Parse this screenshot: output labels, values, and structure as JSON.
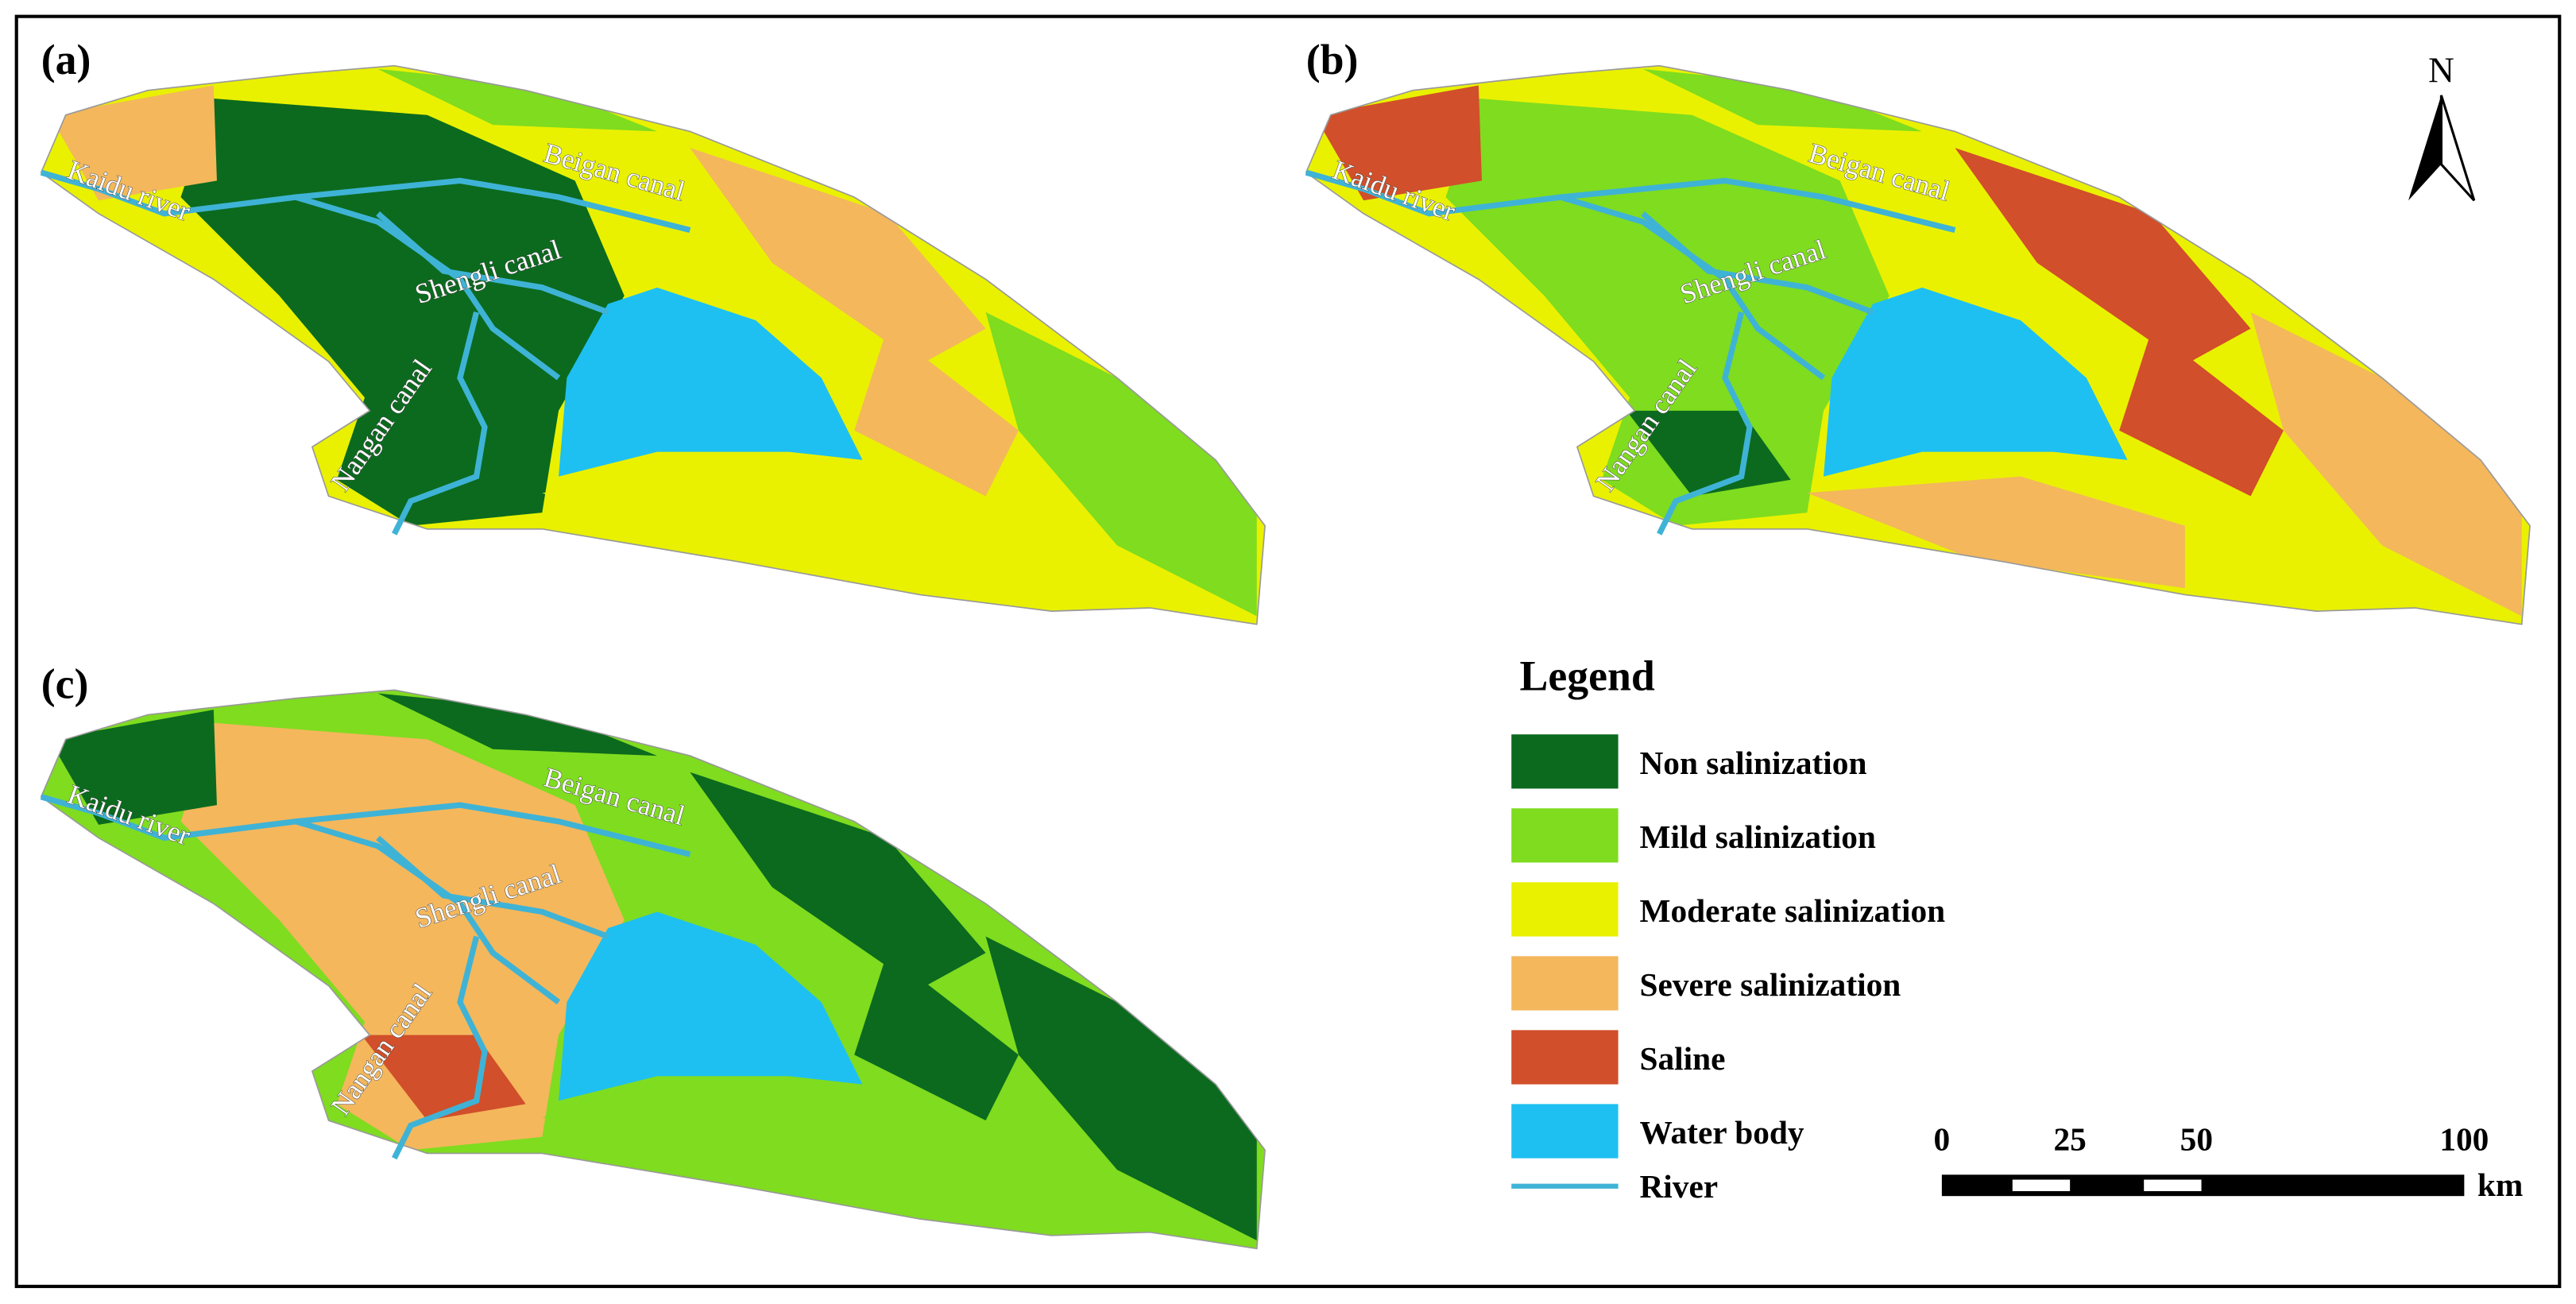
{
  "panels": [
    {
      "label": "(a)",
      "places": [
        "Kaidu river",
        "Beigan canal",
        "Shengli canal",
        "Nangan canal"
      ]
    },
    {
      "label": "(b)",
      "places": [
        "Kaidu river",
        "Beigan canal",
        "Shengli canal",
        "Nangan canal"
      ]
    },
    {
      "label": "(c)",
      "places": [
        "Kaidu river",
        "Beigan canal",
        "Shengli canal",
        "Nangan canal"
      ]
    }
  ],
  "north": "N",
  "legend": {
    "title": "Legend",
    "items": [
      {
        "label": "Non salinization",
        "color": "#0b6a1e"
      },
      {
        "label": "Mild  salinization",
        "color": "#7fdc1f"
      },
      {
        "label": "Moderate  salinization",
        "color": "#e9f100"
      },
      {
        "label": "Severe  salinization",
        "color": "#f4b75c"
      },
      {
        "label": "Saline",
        "color": "#d14f2a"
      },
      {
        "label": "Water body",
        "color": "#1ec0f2"
      },
      {
        "label": "River",
        "color": "#3fb3d6"
      }
    ]
  },
  "scale_bar": {
    "labels": [
      0,
      25,
      50,
      100
    ],
    "unit": "km"
  }
}
